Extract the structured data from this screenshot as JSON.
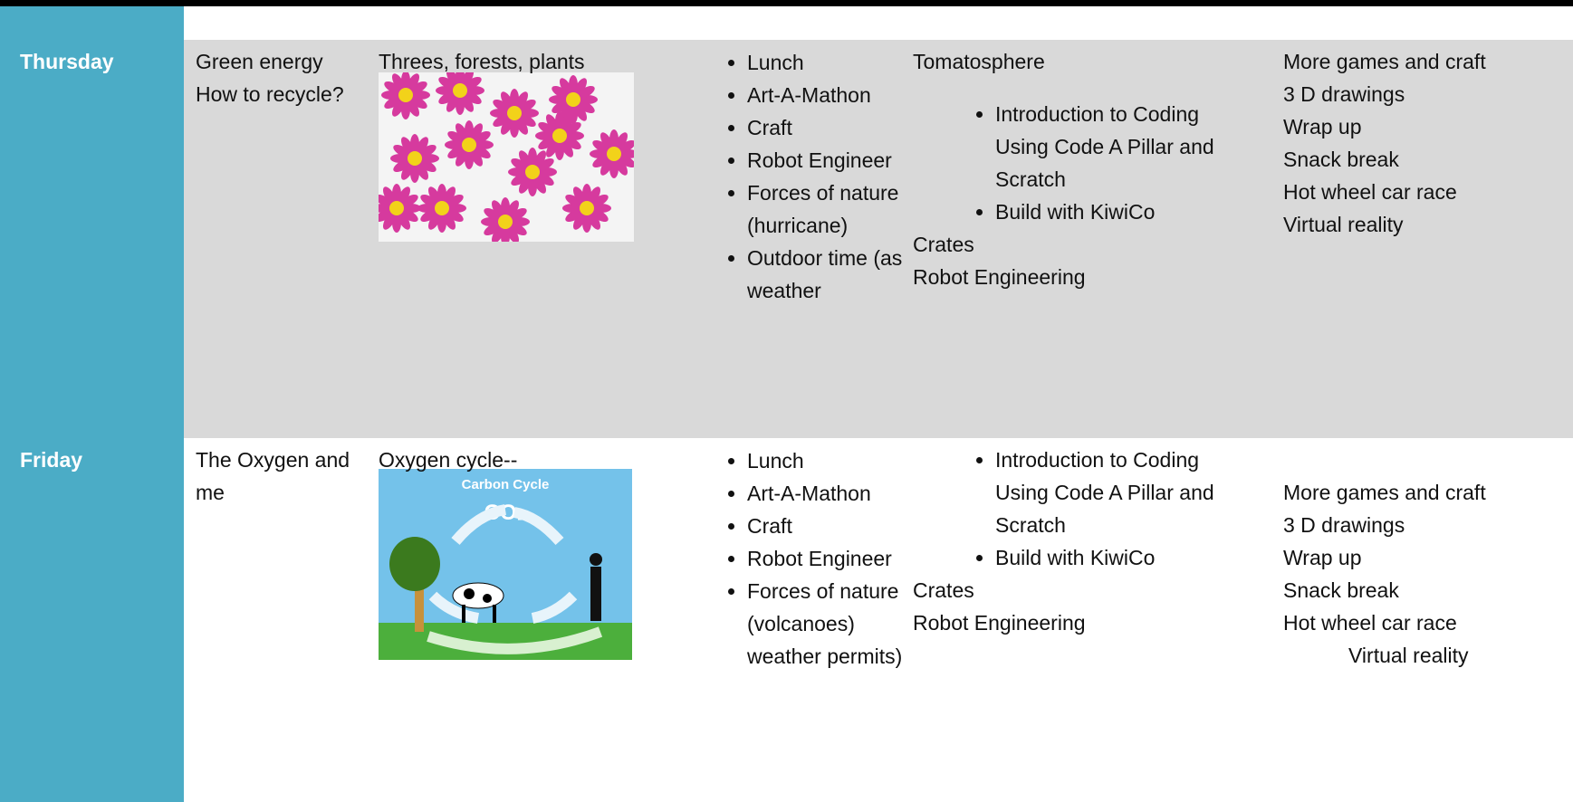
{
  "rows": [
    {
      "day": "Thursday",
      "theme": "Green energy How to recycle?",
      "topic": "Threes, forests, plants",
      "activities": [
        "Lunch",
        "Art-A-Mathon",
        "Craft",
        "Robot Engineer",
        "Forces of nature (hurricane)",
        "Outdoor time (as weather"
      ],
      "stem_intro": "Tomatosphere",
      "stem_bullets": [
        "Introduction to Coding Using Code A Pillar and Scratch",
        "Build with KiwiCo"
      ],
      "stem_after": [
        "Crates",
        "Robot Engineering"
      ],
      "afternoon": [
        "More games and craft",
        "3 D drawings",
        "Wrap up",
        "Snack break",
        "Hot wheel car race",
        "Virtual reality"
      ]
    },
    {
      "day": "Friday",
      "theme": "The Oxygen and me",
      "topic": "Oxygen cycle--",
      "image_title": "Carbon Cycle",
      "image_label": "CO₂",
      "activities": [
        "Lunch",
        "Art-A-Mathon",
        "Craft",
        "Robot Engineer",
        "Forces of nature (volcanoes) weather permits)"
      ],
      "stem_bullets": [
        "Introduction to Coding Using Code A Pillar and Scratch",
        "Build with KiwiCo"
      ],
      "stem_after": [
        "Crates",
        "Robot Engineering"
      ],
      "afternoon": [
        "More games and craft",
        "3 D drawings",
        "Wrap up",
        "Snack break",
        "Hot wheel car race",
        "Virtual reality"
      ]
    }
  ]
}
